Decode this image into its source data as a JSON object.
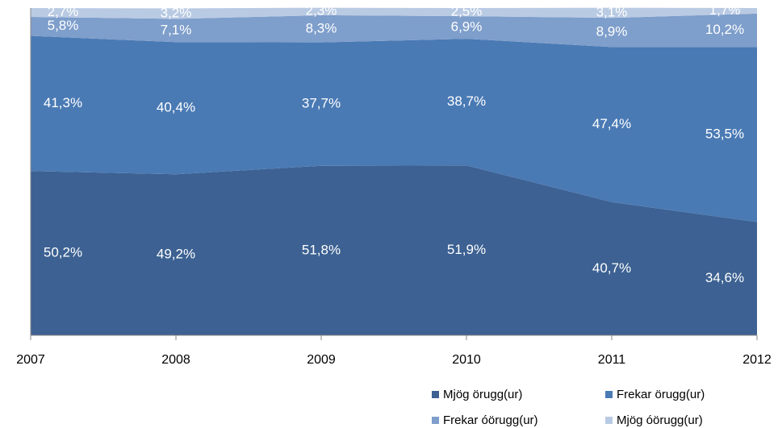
{
  "chart_data": {
    "type": "stacked_area",
    "x": [
      2007,
      2008,
      2009,
      2010,
      2011,
      2012
    ],
    "xlim": [
      2007,
      2012
    ],
    "xticks": [
      2007,
      2008,
      2009,
      2010,
      2011,
      2012
    ],
    "ylim": [
      0,
      100
    ],
    "legend": "bottom-right",
    "series": [
      {
        "name": "Mjög örugg(ur)",
        "color": "#3c6192",
        "values": [
          50.2,
          49.2,
          51.8,
          51.9,
          40.7,
          34.6
        ],
        "value_labels": [
          "50,2%",
          "49,2%",
          "51,8%",
          "51,9%",
          "40,7%",
          "34,6%"
        ]
      },
      {
        "name": "Frekar örugg(ur)",
        "color": "#4a7ab4",
        "values": [
          41.3,
          40.4,
          37.7,
          38.7,
          47.4,
          53.5
        ],
        "value_labels": [
          "41,3%",
          "40,4%",
          "37,7%",
          "38,7%",
          "47,4%",
          "53,5%"
        ]
      },
      {
        "name": "Frekar óörugg(ur)",
        "color": "#7e9ecb",
        "values": [
          5.8,
          7.1,
          8.3,
          6.9,
          8.9,
          10.2
        ],
        "value_labels": [
          "5,8%",
          "7,1%",
          "8,3%",
          "6,9%",
          "8,9%",
          "10,2%"
        ]
      },
      {
        "name": "Mjög óörugg(ur)",
        "color": "#b9cae3",
        "values": [
          2.7,
          3.2,
          2.3,
          2.5,
          3.1,
          1.7
        ],
        "value_labels": [
          "2,7%",
          "3,2%",
          "2,3%",
          "2,5%",
          "3,1%",
          "1,7%"
        ]
      }
    ]
  }
}
